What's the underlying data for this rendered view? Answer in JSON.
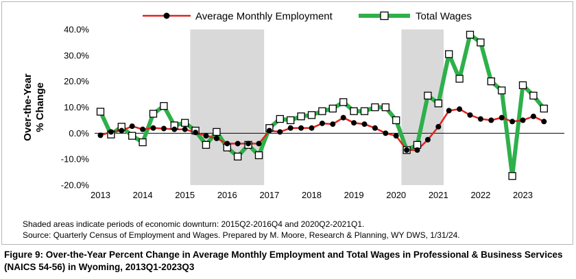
{
  "chart_data": {
    "type": "line",
    "ylabel_lines": [
      "Over-the-Year",
      "% Change"
    ],
    "ylim": [
      -20,
      40
    ],
    "yticks": [
      40,
      30,
      20,
      10,
      0,
      -10,
      -20
    ],
    "ytick_labels": [
      "40.0%",
      "30.0%",
      "20.0%",
      "10.0%",
      "0.0%",
      "-10.0%",
      "-20.0%"
    ],
    "xtick_labels": [
      "2013",
      "2014",
      "2015",
      "2016",
      "2017",
      "2018",
      "2019",
      "2020",
      "2021",
      "2022",
      "2023"
    ],
    "x_start": "2013Q1",
    "x_end": "2023Q3",
    "shaded_periods": [
      {
        "start": "2015Q2",
        "end": "2016Q4"
      },
      {
        "start": "2020Q2",
        "end": "2021Q1"
      }
    ],
    "shade_color": "#d9d9d9",
    "legend_position": "top",
    "series": [
      {
        "name": "Average Monthly Employment",
        "color": "#e3211c",
        "marker": "filled-circle",
        "values": [
          -0.8,
          0.5,
          1.0,
          2.7,
          1.5,
          2.0,
          1.8,
          1.5,
          1.5,
          0.3,
          -1.0,
          -2.0,
          -4.0,
          -4.0,
          -4.0,
          -4.0,
          1.0,
          0.5,
          2.0,
          2.0,
          2.0,
          3.8,
          3.5,
          6.0,
          4.0,
          3.5,
          2.0,
          0.0,
          -1.0,
          -6.5,
          -6.5,
          -2.5,
          2.5,
          8.7,
          9.3,
          7.0,
          5.5,
          5.0,
          6.0,
          4.5,
          5.0,
          6.5,
          4.5
        ]
      },
      {
        "name": "Total Wages",
        "color": "#2eb04a",
        "marker": "hollow-square",
        "values": [
          8.3,
          -0.5,
          2.5,
          -1.0,
          -3.5,
          7.5,
          10.5,
          3.0,
          4.0,
          1.0,
          -4.5,
          0.5,
          -5.5,
          -9.0,
          -4.5,
          -8.5,
          2.0,
          5.5,
          5.0,
          6.5,
          7.0,
          8.5,
          9.5,
          12.0,
          8.5,
          8.5,
          10.0,
          10.0,
          5.0,
          -6.5,
          -4.5,
          14.5,
          11.5,
          30.5,
          21.0,
          38.0,
          35.0,
          20.0,
          16.5,
          -16.5,
          18.5,
          14.5,
          9.5
        ]
      }
    ]
  },
  "notes": {
    "shaded": "Shaded areas indicate periods of economic downturn: 2015Q2-2016Q4 and 2020Q2-2021Q1.",
    "source": "Source: Quarterly Census of Employment and Wages. Prepared by M. Moore, Research & Planning, WY DWS, 1/31/24."
  },
  "caption": "Figure 9: Over-the-Year Percent Change in Average Monthly Employment and Total Wages in Professional & Business Services (NAICS 54-56) in Wyoming, 2013Q1-2023Q3"
}
